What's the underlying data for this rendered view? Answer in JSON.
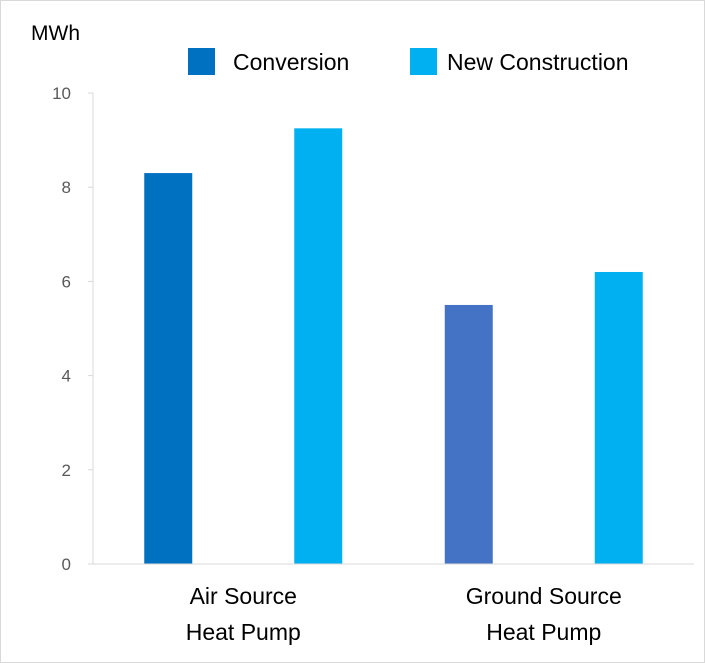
{
  "chart_data": {
    "type": "bar",
    "title": "",
    "ylabel": "MWh",
    "xlabel": "",
    "ylim": [
      0,
      10
    ],
    "yticks": [
      0,
      2,
      4,
      6,
      8,
      10
    ],
    "categories": [
      [
        "Air Source",
        "Heat Pump"
      ],
      [
        "Ground Source",
        "Heat Pump"
      ]
    ],
    "series": [
      {
        "name": "Conversion",
        "color": "#0070c0",
        "values": [
          8.3,
          5.5
        ],
        "point_colors": [
          "#0070c0",
          "#4472c4"
        ]
      },
      {
        "name": "New Construction",
        "color": "#00b0f0",
        "values": [
          9.25,
          6.2
        ],
        "point_colors": [
          "#00b0f0",
          "#00b0f0"
        ]
      }
    ],
    "grid": false,
    "legend_position": "top"
  }
}
